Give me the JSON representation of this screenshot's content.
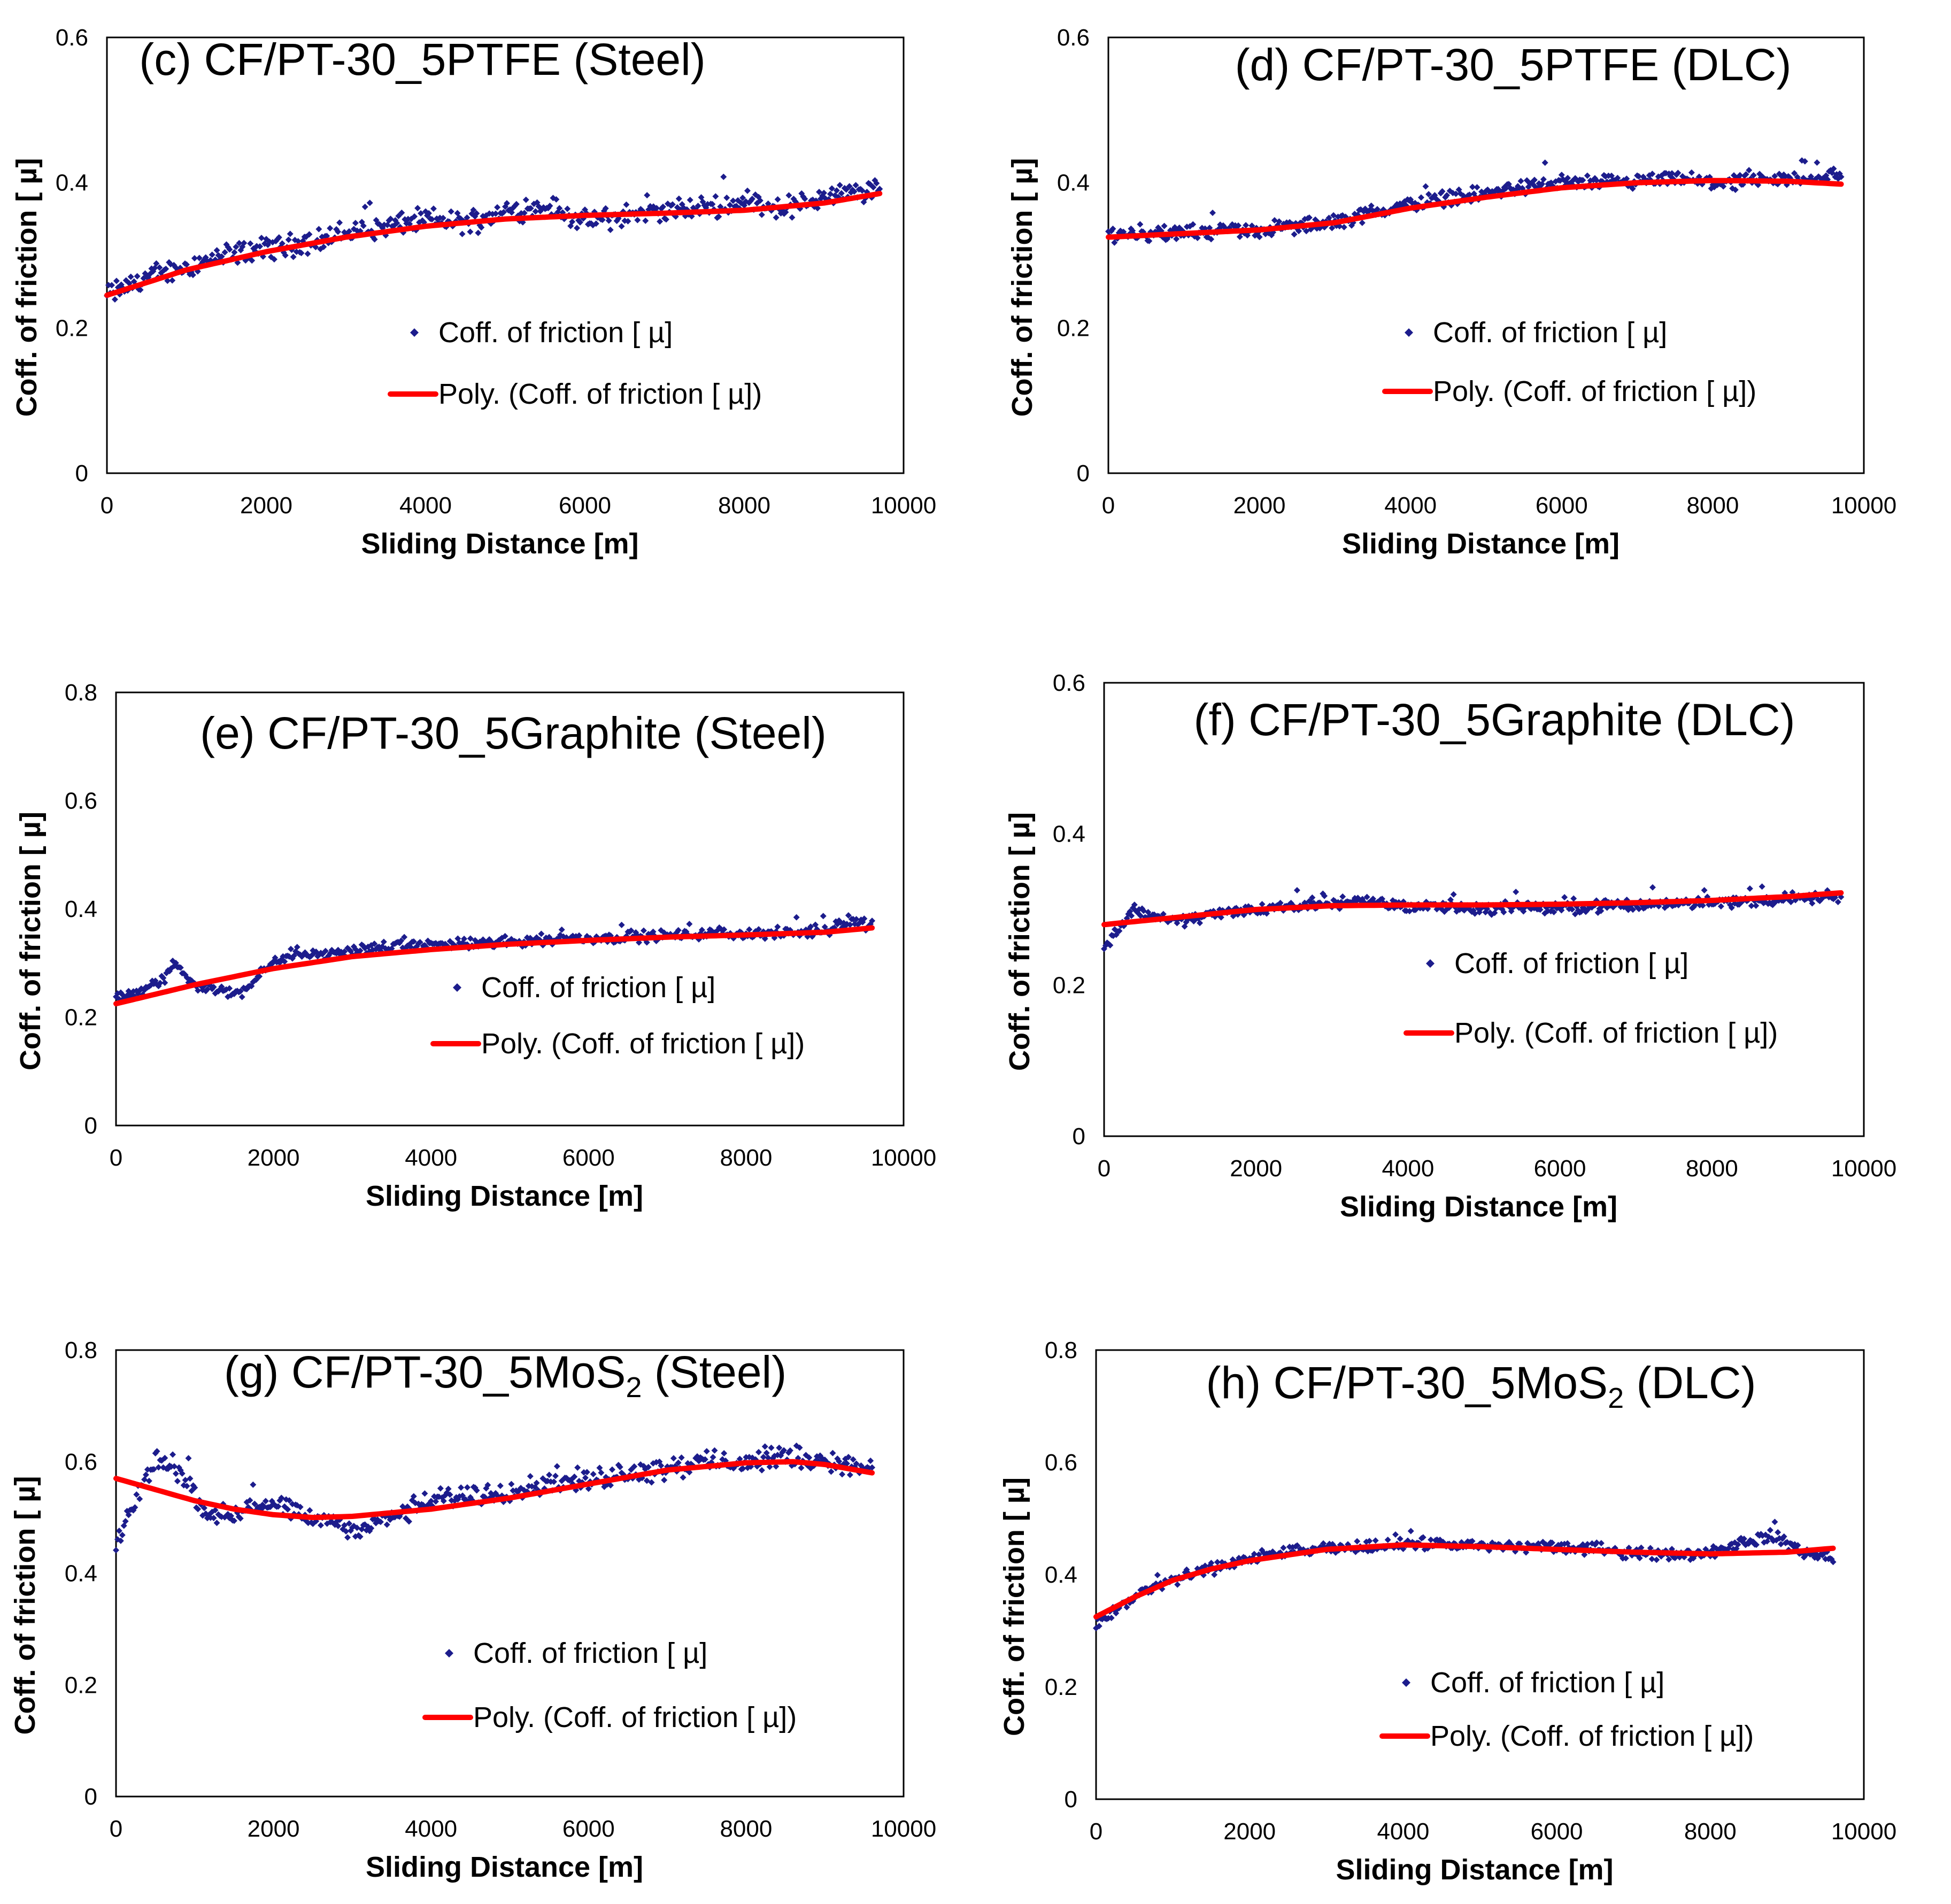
{
  "colors": {
    "points": "#1c1c8c",
    "fit": "#ff0000",
    "frame": "#000000"
  },
  "legend": {
    "marker": "Coff. of friction [ µ]",
    "fit": "Poly. (Coff. of friction [ µ])"
  },
  "chart_data": [
    {
      "id": "c",
      "type": "scatter",
      "title": "(c) CF/PT-30_5PTFE (Steel)",
      "xlabel": "Sliding Distance   [m]",
      "ylabel": "Coff. of friction [ µ]",
      "xlim": [
        0,
        10000
      ],
      "ylim": [
        0,
        0.6
      ],
      "xticks": [
        0,
        2000,
        4000,
        6000,
        8000,
        10000
      ],
      "yticks": [
        0,
        0.2,
        0.4,
        0.6
      ],
      "series": [
        {
          "name": "Coff. of friction [ µ]",
          "type": "scatter",
          "x": [
            0,
            500,
            1000,
            1500,
            2000,
            2500,
            3000,
            3500,
            4000,
            4500,
            5000,
            5500,
            6000,
            6500,
            7000,
            7500,
            8000,
            8500,
            9000,
            9700
          ],
          "y": [
            0.245,
            0.27,
            0.285,
            0.3,
            0.31,
            0.318,
            0.33,
            0.34,
            0.35,
            0.345,
            0.36,
            0.37,
            0.345,
            0.355,
            0.36,
            0.365,
            0.375,
            0.365,
            0.38,
            0.39
          ],
          "noise": 0.012
        },
        {
          "name": "Poly. (Coff. of friction [ µ])",
          "type": "line",
          "x": [
            0,
            1000,
            2000,
            3000,
            4000,
            5000,
            6000,
            7000,
            8000,
            9000,
            9700
          ],
          "y": [
            0.245,
            0.28,
            0.305,
            0.325,
            0.34,
            0.35,
            0.355,
            0.358,
            0.362,
            0.372,
            0.385
          ]
        }
      ]
    },
    {
      "id": "d",
      "type": "scatter",
      "title": "(d) CF/PT-30_5PTFE (DLC)",
      "xlabel": "Sliding Distance   [m]",
      "ylabel": "Coff. of friction [ µ]",
      "xlim": [
        0,
        10000
      ],
      "ylim": [
        0,
        0.6
      ],
      "xticks": [
        0,
        2000,
        4000,
        6000,
        8000,
        10000
      ],
      "yticks": [
        0,
        0.2,
        0.4,
        0.6
      ],
      "series": [
        {
          "name": "Coff. of friction [ µ]",
          "type": "scatter",
          "x": [
            0,
            500,
            1000,
            1500,
            2000,
            2500,
            3000,
            3500,
            4000,
            4500,
            5000,
            5500,
            6000,
            6500,
            7000,
            7500,
            8000,
            8500,
            9000,
            9700
          ],
          "y": [
            0.33,
            0.33,
            0.33,
            0.335,
            0.335,
            0.34,
            0.345,
            0.36,
            0.37,
            0.38,
            0.385,
            0.395,
            0.4,
            0.4,
            0.4,
            0.405,
            0.4,
            0.4,
            0.405,
            0.41
          ],
          "noise": 0.008
        },
        {
          "name": "Poly. (Coff. of friction [ µ])",
          "type": "line",
          "x": [
            0,
            1000,
            2000,
            3000,
            4000,
            5000,
            6000,
            7000,
            8000,
            9000,
            9700
          ],
          "y": [
            0.325,
            0.33,
            0.335,
            0.345,
            0.365,
            0.38,
            0.393,
            0.4,
            0.403,
            0.402,
            0.398
          ]
        }
      ]
    },
    {
      "id": "e",
      "type": "scatter",
      "title": "(e) CF/PT-30_5Graphite (Steel)",
      "xlabel": "Sliding Distance   [m]",
      "ylabel": "Coff. of friction [ µ]",
      "xlim": [
        0,
        10000
      ],
      "ylim": [
        0,
        0.8
      ],
      "xticks": [
        0,
        2000,
        4000,
        6000,
        8000,
        10000
      ],
      "yticks": [
        0,
        0.2,
        0.4,
        0.6,
        0.8
      ],
      "series": [
        {
          "name": "Coff. of friction [ µ]",
          "type": "scatter",
          "x": [
            0,
            300,
            600,
            750,
            1000,
            1300,
            1600,
            1800,
            2000,
            2300,
            2700,
            3000,
            3500,
            4000,
            4500,
            5000,
            5500,
            6000,
            6500,
            7000,
            7500,
            8000,
            8500,
            9000,
            9300,
            9600
          ],
          "y": [
            0.24,
            0.245,
            0.27,
            0.3,
            0.26,
            0.25,
            0.245,
            0.28,
            0.3,
            0.32,
            0.315,
            0.325,
            0.33,
            0.335,
            0.335,
            0.34,
            0.345,
            0.345,
            0.35,
            0.35,
            0.355,
            0.355,
            0.355,
            0.36,
            0.38,
            0.37
          ],
          "noise": 0.008
        },
        {
          "name": "Poly. (Coff. of friction [ µ])",
          "type": "line",
          "x": [
            0,
            1000,
            2000,
            3000,
            4000,
            5000,
            6000,
            7000,
            8000,
            9000,
            9600
          ],
          "y": [
            0.225,
            0.26,
            0.29,
            0.312,
            0.325,
            0.335,
            0.342,
            0.348,
            0.352,
            0.357,
            0.365
          ]
        }
      ]
    },
    {
      "id": "f",
      "type": "scatter",
      "title": "(f) CF/PT-30_5Graphite (DLC)",
      "xlabel": "Sliding Distance   [m]",
      "ylabel": "Coff. of friction [ µ]",
      "xlim": [
        0,
        10000
      ],
      "ylim": [
        0,
        0.6
      ],
      "xticks": [
        0,
        2000,
        4000,
        6000,
        8000,
        10000
      ],
      "yticks": [
        0,
        0.2,
        0.4,
        0.6
      ],
      "series": [
        {
          "name": "Coff. of friction [ µ]",
          "type": "scatter",
          "x": [
            0,
            150,
            400,
            700,
            1000,
            1500,
            2000,
            2500,
            3000,
            3500,
            4000,
            4500,
            5000,
            5500,
            6000,
            6500,
            7000,
            7500,
            8000,
            8500,
            9000,
            9700
          ],
          "y": [
            0.25,
            0.27,
            0.3,
            0.29,
            0.285,
            0.295,
            0.3,
            0.305,
            0.31,
            0.31,
            0.305,
            0.305,
            0.3,
            0.305,
            0.3,
            0.305,
            0.305,
            0.31,
            0.31,
            0.31,
            0.315,
            0.315
          ],
          "noise": 0.006
        },
        {
          "name": "Poly. (Coff. of friction [ µ])",
          "type": "line",
          "x": [
            0,
            1000,
            2000,
            3000,
            4000,
            5000,
            6000,
            7000,
            8000,
            9000,
            9700
          ],
          "y": [
            0.28,
            0.29,
            0.3,
            0.305,
            0.306,
            0.306,
            0.307,
            0.309,
            0.312,
            0.317,
            0.322
          ]
        }
      ]
    },
    {
      "id": "g",
      "type": "scatter",
      "title": "(g) CF/PT-30_5MoS",
      "title_sub": "2",
      "title_after": " (Steel)",
      "xlabel": "Sliding Distance   [m]",
      "ylabel": "Coff. of friction [ µ]",
      "xlim": [
        0,
        10000
      ],
      "ylim": [
        0,
        0.8
      ],
      "xticks": [
        0,
        2000,
        4000,
        6000,
        8000,
        10000
      ],
      "yticks": [
        0,
        0.2,
        0.4,
        0.6,
        0.8
      ],
      "series": [
        {
          "name": "Coff. of friction [ µ]",
          "type": "scatter",
          "x": [
            0,
            100,
            300,
            500,
            700,
            900,
            1100,
            1400,
            1700,
            2000,
            2500,
            3000,
            3500,
            4000,
            4500,
            5000,
            5500,
            6000,
            6500,
            7000,
            7500,
            8000,
            8500,
            9000,
            9600
          ],
          "y": [
            0.45,
            0.48,
            0.55,
            0.6,
            0.6,
            0.56,
            0.52,
            0.5,
            0.52,
            0.52,
            0.5,
            0.48,
            0.5,
            0.53,
            0.54,
            0.55,
            0.56,
            0.57,
            0.58,
            0.59,
            0.6,
            0.6,
            0.61,
            0.6,
            0.59
          ],
          "noise": 0.015
        },
        {
          "name": "Poly. (Coff. of friction [ µ])",
          "type": "line",
          "x": [
            0,
            500,
            1000,
            1500,
            2000,
            2500,
            3000,
            4000,
            5000,
            6000,
            7000,
            8000,
            8600,
            9000,
            9600
          ],
          "y": [
            0.57,
            0.55,
            0.53,
            0.515,
            0.505,
            0.5,
            0.502,
            0.515,
            0.535,
            0.56,
            0.585,
            0.598,
            0.6,
            0.595,
            0.58
          ]
        }
      ]
    },
    {
      "id": "h",
      "type": "scatter",
      "title": "(h) CF/PT-30_5MoS",
      "title_sub": "2",
      "title_after": " (DLC)",
      "xlabel": "Sliding Distance   [m]",
      "ylabel": "Coff. of friction [ µ]",
      "xlim": [
        0,
        10000
      ],
      "ylim": [
        0,
        0.8
      ],
      "xticks": [
        0,
        2000,
        4000,
        6000,
        8000,
        10000
      ],
      "yticks": [
        0,
        0.2,
        0.4,
        0.6,
        0.8
      ],
      "series": [
        {
          "name": "Coff. of friction [ µ]",
          "type": "scatter",
          "x": [
            0,
            300,
            600,
            1000,
            1500,
            2000,
            2500,
            3000,
            3500,
            4000,
            4500,
            5000,
            5500,
            6000,
            6500,
            7000,
            7500,
            8000,
            8500,
            8800,
            9200,
            9600
          ],
          "y": [
            0.31,
            0.34,
            0.37,
            0.39,
            0.41,
            0.43,
            0.44,
            0.445,
            0.45,
            0.455,
            0.455,
            0.45,
            0.45,
            0.45,
            0.445,
            0.44,
            0.435,
            0.44,
            0.46,
            0.47,
            0.44,
            0.43
          ],
          "noise": 0.008
        },
        {
          "name": "Poly. (Coff. of friction [ µ])",
          "type": "line",
          "x": [
            0,
            500,
            1000,
            1500,
            2000,
            3000,
            4000,
            5000,
            6000,
            7000,
            8000,
            9000,
            9600
          ],
          "y": [
            0.325,
            0.36,
            0.39,
            0.41,
            0.425,
            0.445,
            0.453,
            0.45,
            0.445,
            0.44,
            0.437,
            0.44,
            0.447
          ]
        }
      ]
    }
  ]
}
